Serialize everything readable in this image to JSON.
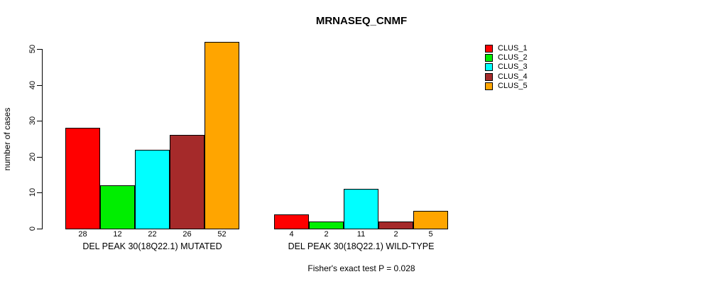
{
  "background_color": "#FFFFFF",
  "text_color": "#000000",
  "chart_data": {
    "type": "bar",
    "title": "MRNASEQ_CNMF",
    "xlabel": "",
    "ylabel": "number of cases",
    "ylim": [
      0,
      50
    ],
    "yticks": [
      0,
      10,
      20,
      30,
      40,
      50
    ],
    "grid": false,
    "legend_position": "top-right",
    "bar_value_labels": true,
    "categories": [
      "DEL PEAK 30(18Q22.1) MUTATED",
      "DEL PEAK 30(18Q22.1) WILD-TYPE"
    ],
    "series": [
      {
        "name": "CLUS_1",
        "color": "#FF0000",
        "values": [
          28,
          4
        ]
      },
      {
        "name": "CLUS_2",
        "color": "#00EE00",
        "values": [
          12,
          2
        ]
      },
      {
        "name": "CLUS_3",
        "color": "#00FFFF",
        "values": [
          22,
          11
        ]
      },
      {
        "name": "CLUS_4",
        "color": "#A52A2A",
        "values": [
          26,
          2
        ]
      },
      {
        "name": "CLUS_5",
        "color": "#FFA500",
        "values": [
          52,
          5
        ]
      }
    ],
    "annotation": "Fisher's exact test P = 0.028"
  }
}
